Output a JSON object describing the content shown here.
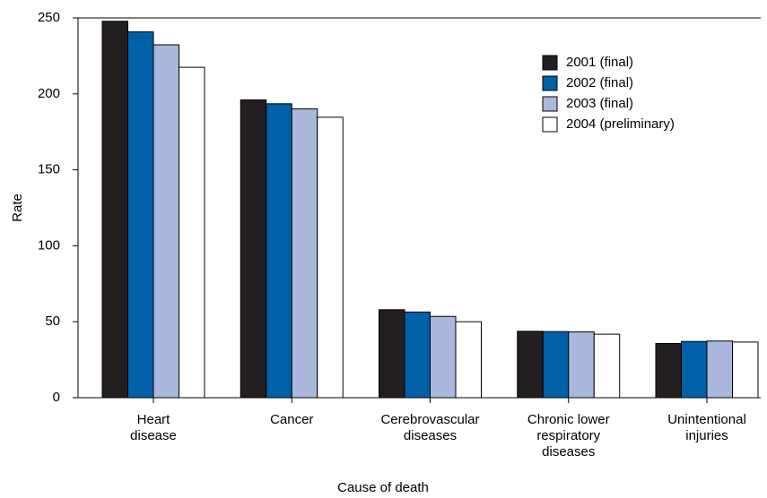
{
  "chart_data": {
    "type": "bar",
    "y_label": "Rate",
    "x_label": "Cause of death",
    "categories": [
      "Heart\ndisease",
      "Cancer",
      "Cerebrovascular\ndiseases",
      "Chronic lower\nrespiratory\ndiseases",
      "Unintentional\ninjuries"
    ],
    "series": [
      {
        "name": "2001 (final)",
        "color": "#231f20",
        "values": [
          247.8,
          196.0,
          57.9,
          43.7,
          35.7
        ]
      },
      {
        "name": "2002 (final)",
        "color": "#0060a8",
        "values": [
          240.8,
          193.5,
          56.4,
          43.5,
          37.0
        ]
      },
      {
        "name": "2003 (final)",
        "color": "#a9b8dc",
        "values": [
          232.3,
          190.1,
          53.5,
          43.3,
          37.3
        ]
      },
      {
        "name": "2004 (preliminary)",
        "color": "#ffffff",
        "values": [
          217.5,
          184.6,
          50.0,
          41.8,
          36.6
        ]
      }
    ],
    "ylim": [
      0,
      250
    ],
    "yticks": [
      0,
      50,
      100,
      150,
      200,
      250
    ],
    "legend": "upper right"
  }
}
